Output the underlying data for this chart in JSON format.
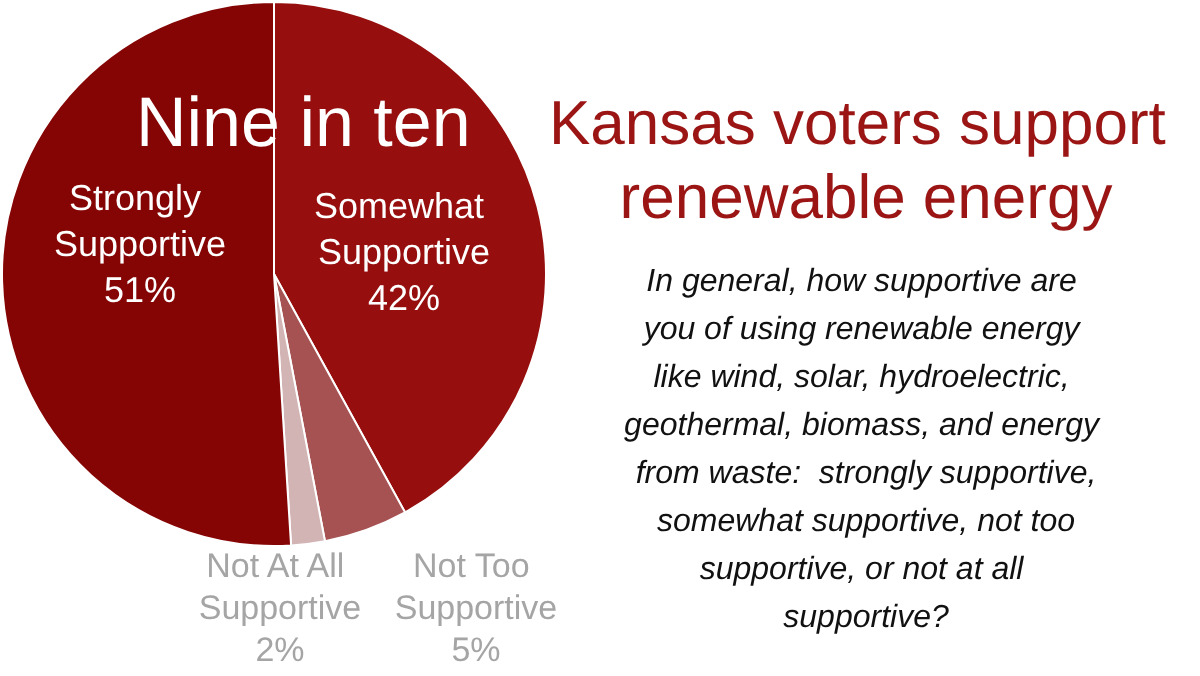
{
  "chart_data": {
    "type": "pie",
    "title": "Kansas voters support renewable energy",
    "subtitle": "In general, how supportive are you of using renewable energy like wind, solar, hydroelectric, geothermal, biomass, and energy from waste:  strongly supportive, somewhat supportive, not too supportive, or not at all supportive?",
    "annotations": [
      "Nine in ten"
    ],
    "categories": [
      "Somewhat Supportive",
      "Not Too Supportive",
      "Not At All Supportive",
      "Strongly Supportive"
    ],
    "values": [
      42,
      5,
      2,
      51
    ],
    "colors": [
      "#960e0e",
      "#a65252",
      "#d2b4b4",
      "#850505"
    ],
    "value_labels": [
      "42%",
      "5%",
      "2%",
      "51%"
    ],
    "legend": false
  }
}
